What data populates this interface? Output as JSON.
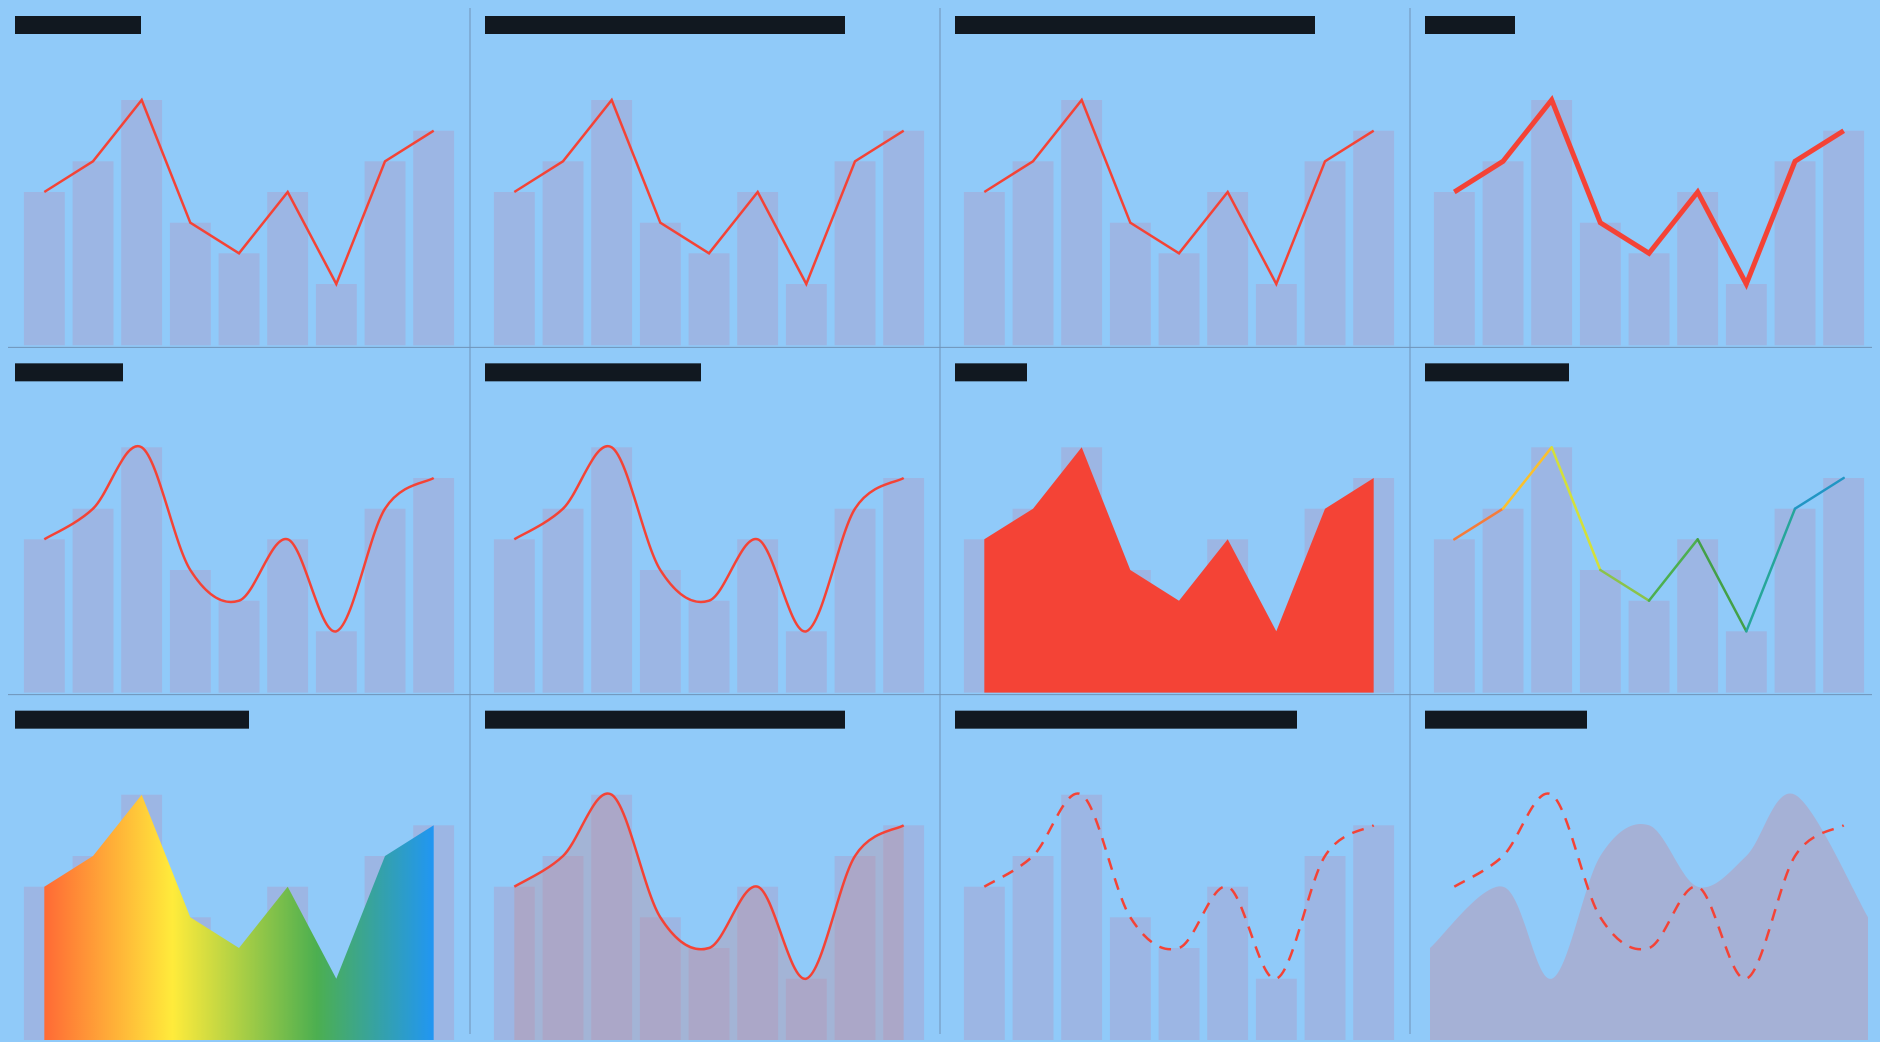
{
  "theme": {
    "background": "#90caf9",
    "divider": "#6f93b8",
    "bar_color": "#9cb6e4",
    "label_block": "#111820",
    "line_red": "#f44336",
    "gradient_colors": [
      "#ff6a35",
      "#fdd835",
      "#ffeb3b",
      "#4caf50",
      "#2196f3"
    ]
  },
  "layout": {
    "rows": 3,
    "cols": 4
  },
  "chart_data": [
    {
      "type": "line",
      "style": "straight",
      "title_redacted": true,
      "bars": [
        5,
        6,
        8,
        4,
        3,
        5,
        2,
        6,
        7
      ],
      "line": [
        5,
        6,
        8,
        4,
        3,
        5,
        2,
        6,
        7
      ],
      "ylim": [
        0,
        8
      ]
    },
    {
      "type": "line",
      "style": "straight",
      "title_redacted": true,
      "bars": [
        5,
        6,
        8,
        4,
        3,
        5,
        2,
        6,
        7
      ],
      "line": [
        5,
        6,
        8,
        4,
        3,
        5,
        2,
        6,
        7
      ],
      "ylim": [
        0,
        8
      ]
    },
    {
      "type": "line",
      "style": "straight",
      "title_redacted": true,
      "bars": [
        5,
        6,
        8,
        4,
        3,
        5,
        2,
        6,
        7
      ],
      "line": [
        5,
        6,
        8,
        4,
        3,
        5,
        2,
        6,
        7
      ],
      "ylim": [
        0,
        8
      ]
    },
    {
      "type": "line",
      "style": "straight-thick",
      "title_redacted": true,
      "bars": [
        5,
        6,
        8,
        4,
        3,
        5,
        2,
        6,
        7
      ],
      "line": [
        5,
        6,
        8,
        4,
        3,
        5,
        2,
        6,
        7
      ],
      "ylim": [
        0,
        8
      ]
    },
    {
      "type": "line",
      "style": "smooth",
      "title_redacted": true,
      "bars": [
        5,
        6,
        8,
        4,
        3,
        5,
        2,
        6,
        7
      ],
      "line": [
        5,
        6,
        8,
        4,
        3,
        5,
        2,
        6,
        7
      ],
      "ylim": [
        0,
        8
      ]
    },
    {
      "type": "line",
      "style": "smooth",
      "title_redacted": true,
      "bars": [
        5,
        6,
        8,
        4,
        3,
        5,
        2,
        6,
        7
      ],
      "line": [
        5,
        6,
        8,
        4,
        3,
        5,
        2,
        6,
        7
      ],
      "ylim": [
        0,
        8
      ]
    },
    {
      "type": "area",
      "style": "straight-fill",
      "title_redacted": true,
      "bars": [
        5,
        6,
        8,
        4,
        3,
        5,
        2,
        6,
        7
      ],
      "line": [
        5,
        6,
        8,
        4,
        3,
        5,
        2,
        6,
        7
      ],
      "ylim": [
        0,
        8
      ]
    },
    {
      "type": "line",
      "style": "gradient-stroke",
      "title_redacted": true,
      "bars": [
        5,
        6,
        8,
        4,
        3,
        5,
        2,
        6,
        7
      ],
      "line": [
        5,
        6,
        8,
        4,
        3,
        5,
        2,
        6,
        7
      ],
      "ylim": [
        0,
        8
      ]
    },
    {
      "type": "area",
      "style": "gradient-fill",
      "title_redacted": true,
      "bars": [
        5,
        6,
        8,
        4,
        3,
        5,
        2,
        6,
        7
      ],
      "line": [
        5,
        6,
        8,
        4,
        3,
        5,
        2,
        6,
        7
      ],
      "ylim": [
        0,
        8
      ]
    },
    {
      "type": "area",
      "style": "smooth-tinted-fill",
      "title_redacted": true,
      "bars": [
        5,
        6,
        8,
        4,
        3,
        5,
        2,
        6,
        7
      ],
      "line": [
        5,
        6,
        8,
        4,
        3,
        5,
        2,
        6,
        7
      ],
      "ylim": [
        0,
        8
      ]
    },
    {
      "type": "line",
      "style": "smooth-dashed",
      "title_redacted": true,
      "bars": [
        5,
        6,
        8,
        4,
        3,
        5,
        2,
        6,
        7
      ],
      "line": [
        5,
        6,
        8,
        4,
        3,
        5,
        2,
        6,
        7
      ],
      "ylim": [
        0,
        8
      ]
    },
    {
      "type": "line",
      "style": "smooth-dashed-over-area",
      "title_redacted": true,
      "area": [
        3,
        5,
        2,
        6,
        7,
        5,
        6,
        8,
        4
      ],
      "line": [
        5,
        6,
        8,
        4,
        3,
        5,
        2,
        6,
        7
      ],
      "ylim": [
        0,
        8
      ]
    }
  ]
}
